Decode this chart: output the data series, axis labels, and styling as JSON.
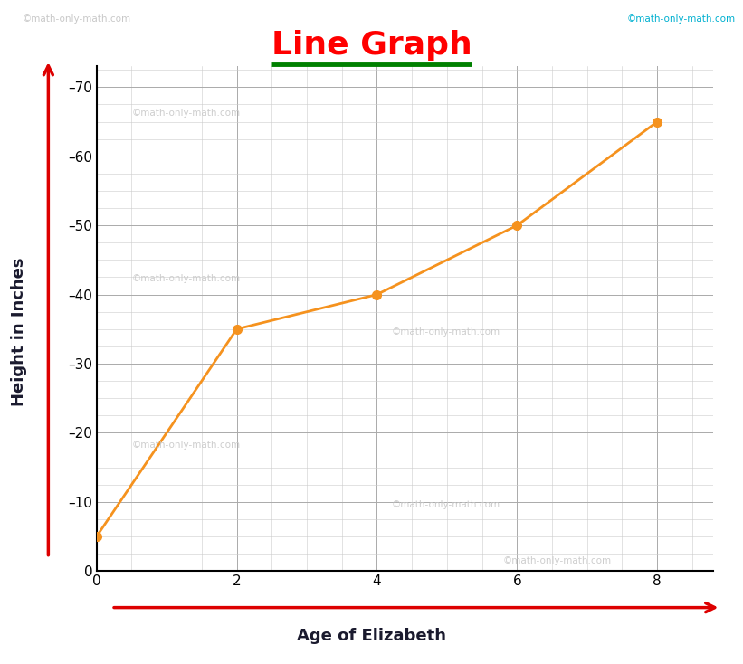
{
  "x": [
    0,
    2,
    4,
    6,
    8
  ],
  "y": [
    5,
    35,
    40,
    50,
    65
  ],
  "line_color": "#F5921E",
  "marker_color": "#F5921E",
  "title": "Line Graph",
  "title_color": "#FF0000",
  "title_underline_color": "#008000",
  "xlabel": "Age of Elizabeth",
  "ylabel": "Height in Inches",
  "xlabel_color": "#1a1a2e",
  "ylabel_color": "#1a1a2e",
  "axis_arrow_color": "#DD0000",
  "xlim": [
    0,
    8.8
  ],
  "ylim": [
    0,
    73
  ],
  "xticks": [
    0,
    2,
    4,
    6,
    8
  ],
  "yticks": [
    0,
    10,
    20,
    30,
    40,
    50,
    60,
    70
  ],
  "grid_minor_color": "#CCCCCC",
  "grid_major_color": "#AAAAAA",
  "background_color": "#FFFFFF",
  "watermark_text": "©math-only-math.com",
  "watermark_color_light": "#C8C8C8",
  "watermark_color_cyan": "#00B0D0",
  "title_fontsize": 26,
  "axis_label_fontsize": 13,
  "tick_fontsize": 11,
  "line_width": 2.0,
  "marker_size": 7
}
